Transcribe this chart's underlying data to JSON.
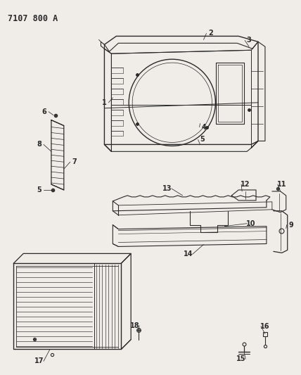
{
  "title": "7107 800 A",
  "bg_color": "#f0ede8",
  "line_color": "#2a2a2a",
  "title_fontsize": 8.5,
  "label_fontsize": 7,
  "fig_width": 4.28,
  "fig_height": 5.33,
  "dpi": 100
}
